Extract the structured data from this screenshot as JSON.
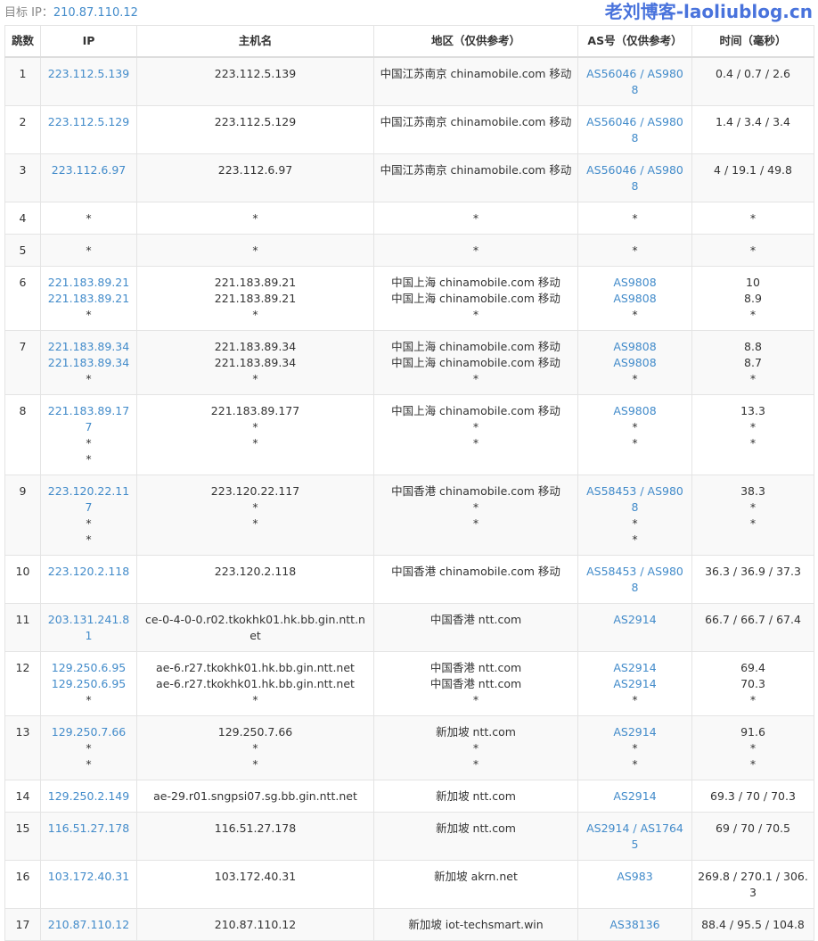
{
  "target_label": "目标 IP：",
  "target_ip": "210.87.110.12",
  "headers": [
    "跳数",
    "IP",
    "主机名",
    "地区（仅供参考）",
    "AS号（仅供参考）",
    "时间（毫秒）"
  ],
  "rows": [
    {
      "hop": "1",
      "ip": [
        "223.112.5.139"
      ],
      "host": [
        "223.112.5.139"
      ],
      "region": [
        "中国江苏南京 chinamobile.com 移动"
      ],
      "as": [
        "AS56046 / AS9808"
      ],
      "time": [
        "0.4 / 0.7 / 2.6"
      ]
    },
    {
      "hop": "2",
      "ip": [
        "223.112.5.129"
      ],
      "host": [
        "223.112.5.129"
      ],
      "region": [
        "中国江苏南京 chinamobile.com 移动"
      ],
      "as": [
        "AS56046 / AS9808"
      ],
      "time": [
        "1.4 / 3.4 / 3.4"
      ]
    },
    {
      "hop": "3",
      "ip": [
        "223.112.6.97"
      ],
      "host": [
        "223.112.6.97"
      ],
      "region": [
        "中国江苏南京 chinamobile.com 移动"
      ],
      "as": [
        "AS56046 / AS9808"
      ],
      "time": [
        "4 / 19.1 / 49.8"
      ]
    },
    {
      "hop": "4",
      "ip": [
        "*"
      ],
      "host": [
        "*"
      ],
      "region": [
        "*"
      ],
      "as": [
        "*"
      ],
      "time": [
        "*"
      ]
    },
    {
      "hop": "5",
      "ip": [
        "*"
      ],
      "host": [
        "*"
      ],
      "region": [
        "*"
      ],
      "as": [
        "*"
      ],
      "time": [
        "*"
      ]
    },
    {
      "hop": "6",
      "ip": [
        "221.183.89.21",
        "221.183.89.21",
        "*"
      ],
      "host": [
        "221.183.89.21",
        "221.183.89.21",
        "*"
      ],
      "region": [
        "中国上海 chinamobile.com 移动",
        "中国上海 chinamobile.com 移动",
        "*"
      ],
      "as": [
        "AS9808",
        "AS9808",
        "*"
      ],
      "time": [
        "10",
        "8.9",
        "*"
      ]
    },
    {
      "hop": "7",
      "ip": [
        "221.183.89.34",
        "221.183.89.34",
        "*"
      ],
      "host": [
        "221.183.89.34",
        "221.183.89.34",
        "*"
      ],
      "region": [
        "中国上海 chinamobile.com 移动",
        "中国上海 chinamobile.com 移动",
        "*"
      ],
      "as": [
        "AS9808",
        "AS9808",
        "*"
      ],
      "time": [
        "8.8",
        "8.7",
        "*"
      ]
    },
    {
      "hop": "8",
      "ip": [
        "221.183.89.177",
        "*",
        "*"
      ],
      "host": [
        "221.183.89.177",
        "*",
        "*"
      ],
      "region": [
        "中国上海 chinamobile.com 移动",
        "*",
        "*"
      ],
      "as": [
        "AS9808",
        "*",
        "*"
      ],
      "time": [
        "13.3",
        "*",
        "*"
      ]
    },
    {
      "hop": "9",
      "ip": [
        "223.120.22.117",
        "*",
        "*"
      ],
      "host": [
        "223.120.22.117",
        "*",
        "*"
      ],
      "region": [
        "中国香港 chinamobile.com 移动",
        "*",
        "*"
      ],
      "as": [
        "AS58453 / AS9808",
        "*",
        "*"
      ],
      "time": [
        "38.3",
        "*",
        "*"
      ]
    },
    {
      "hop": "10",
      "ip": [
        "223.120.2.118"
      ],
      "host": [
        "223.120.2.118"
      ],
      "region": [
        "中国香港 chinamobile.com 移动"
      ],
      "as": [
        "AS58453 / AS9808"
      ],
      "time": [
        "36.3 / 36.9 / 37.3"
      ]
    },
    {
      "hop": "11",
      "ip": [
        "203.131.241.81"
      ],
      "host": [
        "ce-0-4-0-0.r02.tkokhk01.hk.bb.gin.ntt.net"
      ],
      "region": [
        "中国香港 ntt.com"
      ],
      "as": [
        "AS2914"
      ],
      "time": [
        "66.7 / 66.7 / 67.4"
      ]
    },
    {
      "hop": "12",
      "ip": [
        "129.250.6.95",
        "129.250.6.95",
        "*"
      ],
      "host": [
        "ae-6.r27.tkokhk01.hk.bb.gin.ntt.net",
        "ae-6.r27.tkokhk01.hk.bb.gin.ntt.net",
        "*"
      ],
      "region": [
        "中国香港 ntt.com",
        "中国香港 ntt.com",
        "*"
      ],
      "as": [
        "AS2914",
        "AS2914",
        "*"
      ],
      "time": [
        "69.4",
        "70.3",
        "*"
      ]
    },
    {
      "hop": "13",
      "ip": [
        "129.250.7.66",
        "*",
        "*"
      ],
      "host": [
        "129.250.7.66",
        "*",
        "*"
      ],
      "region": [
        "新加坡 ntt.com",
        "*",
        "*"
      ],
      "as": [
        "AS2914",
        "*",
        "*"
      ],
      "time": [
        "91.6",
        "*",
        "*"
      ]
    },
    {
      "hop": "14",
      "ip": [
        "129.250.2.149"
      ],
      "host": [
        "ae-29.r01.sngpsi07.sg.bb.gin.ntt.net"
      ],
      "region": [
        "新加坡 ntt.com"
      ],
      "as": [
        "AS2914"
      ],
      "time": [
        "69.3 / 70 / 70.3"
      ]
    },
    {
      "hop": "15",
      "ip": [
        "116.51.27.178"
      ],
      "host": [
        "116.51.27.178"
      ],
      "region": [
        "新加坡 ntt.com"
      ],
      "as": [
        "AS2914 / AS17645"
      ],
      "time": [
        "69 / 70 / 70.5"
      ]
    },
    {
      "hop": "16",
      "ip": [
        "103.172.40.31"
      ],
      "host": [
        "103.172.40.31"
      ],
      "region": [
        "新加坡 akrn.net"
      ],
      "as": [
        "AS983"
      ],
      "time": [
        "269.8 / 270.1 / 306.3"
      ]
    },
    {
      "hop": "17",
      "ip": [
        "210.87.110.12"
      ],
      "host": [
        "210.87.110.12"
      ],
      "region": [
        "新加坡 iot-techsmart.win"
      ],
      "as": [
        "AS38136"
      ],
      "time": [
        "88.4 / 95.5 / 104.8"
      ]
    }
  ],
  "watermark": "老刘博客-laoliublog.cn"
}
